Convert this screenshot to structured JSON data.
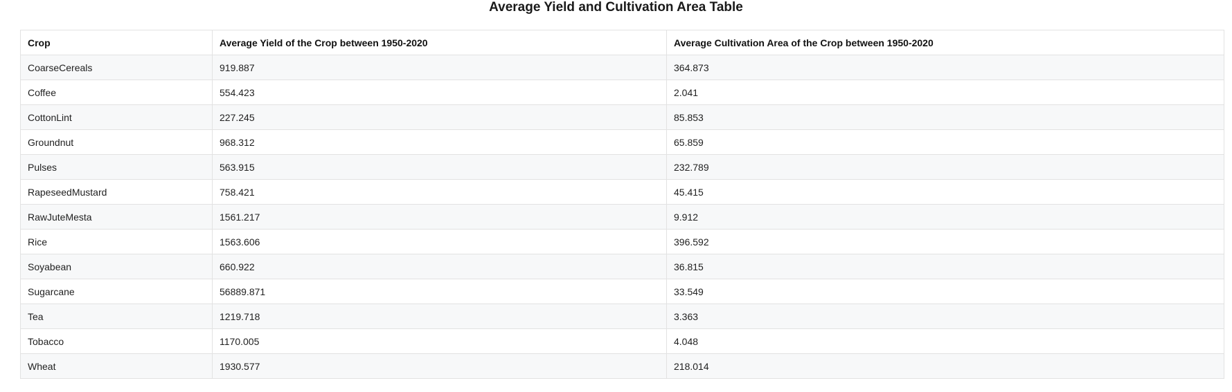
{
  "chart_data": {
    "type": "table",
    "title": "Average Yield and Cultivation Area Table",
    "columns": [
      "Crop",
      "Average Yield of the Crop between 1950-2020",
      "Average Cultivation Area of the Crop between 1950-2020"
    ],
    "rows": [
      [
        "CoarseCereals",
        "919.887",
        "364.873"
      ],
      [
        "Coffee",
        "554.423",
        "2.041"
      ],
      [
        "CottonLint",
        "227.245",
        "85.853"
      ],
      [
        "Groundnut",
        "968.312",
        "65.859"
      ],
      [
        "Pulses",
        "563.915",
        "232.789"
      ],
      [
        "RapeseedMustard",
        "758.421",
        "45.415"
      ],
      [
        "RawJuteMesta",
        "1561.217",
        "9.912"
      ],
      [
        "Rice",
        "1563.606",
        "396.592"
      ],
      [
        "Soyabean",
        "660.922",
        "36.815"
      ],
      [
        "Sugarcane",
        "56889.871",
        "33.549"
      ],
      [
        "Tea",
        "1219.718",
        "3.363"
      ],
      [
        "Tobacco",
        "1170.005",
        "4.048"
      ],
      [
        "Wheat",
        "1930.577",
        "218.014"
      ]
    ]
  }
}
